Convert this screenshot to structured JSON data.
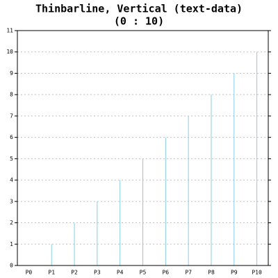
{
  "chart_data": {
    "type": "thinbarline",
    "title": "Thinbarline, Vertical (text-data)",
    "subtitle": "(0 : 10)",
    "categories": [
      "P0",
      "P1",
      "P2",
      "P3",
      "P4",
      "P5",
      "P6",
      "P7",
      "P8",
      "P9",
      "P10"
    ],
    "values": [
      0,
      1,
      2,
      3,
      4,
      5,
      6,
      7,
      8,
      9,
      10
    ],
    "color": "#87ceeb",
    "ylim": [
      0,
      11
    ],
    "yticks": [
      0,
      1,
      2,
      3,
      4,
      5,
      6,
      7,
      8,
      9,
      10,
      11
    ],
    "grid": true
  }
}
